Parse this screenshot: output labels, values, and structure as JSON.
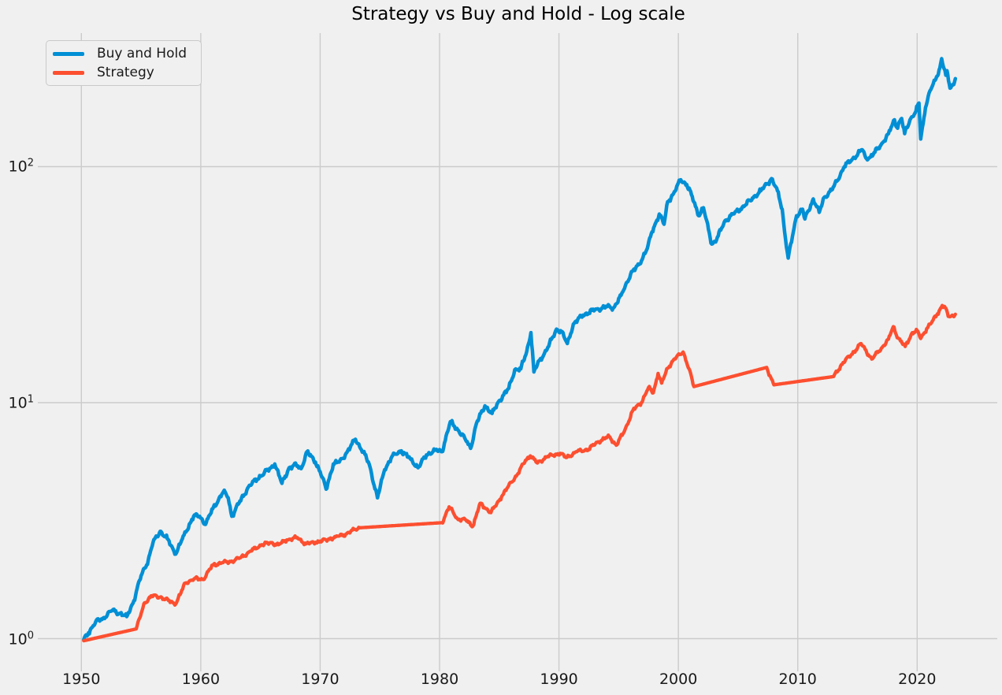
{
  "figure": {
    "title": "Strategy vs Buy and Hold - Log scale",
    "background_color": "#f0f0f0",
    "grid_color": "#cbcbcb",
    "text_color": "#1a1a1a"
  },
  "legend": {
    "items": [
      {
        "label": "Buy and Hold",
        "color": "#008fd5"
      },
      {
        "label": "Strategy",
        "color": "#fc4f30"
      }
    ]
  },
  "axes": {
    "x_ticks": [
      1950,
      1960,
      1970,
      1980,
      1990,
      2000,
      2010,
      2020
    ],
    "y_ticks": [
      {
        "base": "10",
        "exp": "0",
        "value": 1
      },
      {
        "base": "10",
        "exp": "1",
        "value": 10
      },
      {
        "base": "10",
        "exp": "2",
        "value": 100
      }
    ]
  },
  "chart_data": {
    "type": "line",
    "title": "Strategy vs Buy and Hold - Log scale",
    "xlabel": "",
    "ylabel": "",
    "x_unit": "year",
    "y_scale": "log",
    "x_range": [
      1946.4,
      2026.9
    ],
    "y_range": [
      0.75,
      370
    ],
    "grid": true,
    "legend_position": "upper left",
    "series": [
      {
        "name": "Buy and Hold",
        "color": "#008fd5",
        "points": [
          [
            1950.2,
            0.99
          ],
          [
            1950.6,
            1.06
          ],
          [
            1951.2,
            1.18
          ],
          [
            1951.8,
            1.22
          ],
          [
            1952.6,
            1.32
          ],
          [
            1953.2,
            1.28
          ],
          [
            1953.8,
            1.24
          ],
          [
            1954.4,
            1.45
          ],
          [
            1955.0,
            1.85
          ],
          [
            1955.6,
            2.15
          ],
          [
            1956.0,
            2.55
          ],
          [
            1956.6,
            2.85
          ],
          [
            1957.2,
            2.65
          ],
          [
            1957.9,
            2.28
          ],
          [
            1958.6,
            2.75
          ],
          [
            1959.4,
            3.3
          ],
          [
            1959.9,
            3.3
          ],
          [
            1960.4,
            3.05
          ],
          [
            1961.0,
            3.55
          ],
          [
            1961.9,
            4.2
          ],
          [
            1962.3,
            3.95
          ],
          [
            1962.6,
            3.3
          ],
          [
            1963.2,
            3.75
          ],
          [
            1964.0,
            4.4
          ],
          [
            1965.0,
            4.9
          ],
          [
            1965.9,
            5.3
          ],
          [
            1966.2,
            5.5
          ],
          [
            1966.8,
            4.55
          ],
          [
            1967.4,
            5.3
          ],
          [
            1968.0,
            5.45
          ],
          [
            1968.4,
            5.25
          ],
          [
            1968.9,
            6.2
          ],
          [
            1969.6,
            5.6
          ],
          [
            1970.0,
            5.1
          ],
          [
            1970.5,
            4.3
          ],
          [
            1971.1,
            5.5
          ],
          [
            1971.6,
            5.6
          ],
          [
            1972.1,
            6.0
          ],
          [
            1972.95,
            7.0
          ],
          [
            1973.6,
            6.2
          ],
          [
            1974.1,
            5.5
          ],
          [
            1974.8,
            3.95
          ],
          [
            1975.4,
            5.2
          ],
          [
            1976.0,
            5.9
          ],
          [
            1976.8,
            6.25
          ],
          [
            1977.6,
            5.75
          ],
          [
            1978.2,
            5.3
          ],
          [
            1978.9,
            6.0
          ],
          [
            1979.6,
            6.3
          ],
          [
            1980.2,
            6.2
          ],
          [
            1980.9,
            8.3
          ],
          [
            1981.6,
            7.6
          ],
          [
            1982.1,
            7.1
          ],
          [
            1982.6,
            6.4
          ],
          [
            1983.1,
            8.2
          ],
          [
            1983.8,
            9.7
          ],
          [
            1984.4,
            9.0
          ],
          [
            1985.0,
            10.2
          ],
          [
            1985.8,
            11.5
          ],
          [
            1986.3,
            13.8
          ],
          [
            1986.8,
            13.9
          ],
          [
            1987.3,
            16.5
          ],
          [
            1987.65,
            19.8
          ],
          [
            1987.9,
            13.5
          ],
          [
            1988.4,
            15.2
          ],
          [
            1989.0,
            16.8
          ],
          [
            1989.8,
            20.5
          ],
          [
            1990.2,
            20.0
          ],
          [
            1990.7,
            17.8
          ],
          [
            1991.2,
            21.5
          ],
          [
            1992.0,
            23.5
          ],
          [
            1993.0,
            24.7
          ],
          [
            1994.0,
            25.5
          ],
          [
            1994.6,
            25.3
          ],
          [
            1995.2,
            28.5
          ],
          [
            1996.0,
            35
          ],
          [
            1996.7,
            38.5
          ],
          [
            1997.4,
            45
          ],
          [
            1997.8,
            53
          ],
          [
            1998.4,
            63
          ],
          [
            1998.8,
            57
          ],
          [
            1999.1,
            71
          ],
          [
            1999.6,
            77
          ],
          [
            2000.2,
            88
          ],
          [
            2000.7,
            84
          ],
          [
            2001.1,
            76
          ],
          [
            2001.7,
            62
          ],
          [
            2002.1,
            67
          ],
          [
            2002.8,
            47
          ],
          [
            2003.2,
            49
          ],
          [
            2003.9,
            59
          ],
          [
            2004.6,
            63
          ],
          [
            2005.2,
            66
          ],
          [
            2006.0,
            72
          ],
          [
            2006.9,
            79
          ],
          [
            2007.8,
            89
          ],
          [
            2008.3,
            79
          ],
          [
            2008.7,
            66
          ],
          [
            2008.9,
            53
          ],
          [
            2009.2,
            41
          ],
          [
            2009.9,
            62
          ],
          [
            2010.4,
            66
          ],
          [
            2010.6,
            60
          ],
          [
            2011.3,
            73
          ],
          [
            2011.8,
            64
          ],
          [
            2012.2,
            74
          ],
          [
            2012.9,
            80
          ],
          [
            2013.9,
            100
          ],
          [
            2014.6,
            108
          ],
          [
            2015.4,
            118
          ],
          [
            2015.7,
            109
          ],
          [
            2016.1,
            110
          ],
          [
            2016.9,
            122
          ],
          [
            2017.6,
            138
          ],
          [
            2018.1,
            158
          ],
          [
            2018.3,
            147
          ],
          [
            2018.7,
            160
          ],
          [
            2018.95,
            138
          ],
          [
            2019.4,
            158
          ],
          [
            2019.9,
            172
          ],
          [
            2020.15,
            186
          ],
          [
            2020.3,
            131
          ],
          [
            2020.7,
            178
          ],
          [
            2021.0,
            205
          ],
          [
            2021.5,
            232
          ],
          [
            2021.9,
            262
          ],
          [
            2022.05,
            287
          ],
          [
            2022.4,
            244
          ],
          [
            2022.5,
            255
          ],
          [
            2022.75,
            215
          ],
          [
            2023.0,
            222
          ],
          [
            2023.2,
            236
          ]
        ]
      },
      {
        "name": "Strategy",
        "color": "#fc4f30",
        "points": [
          [
            1950.2,
            0.98
          ],
          [
            1954.6,
            1.1,
            1
          ],
          [
            1955.3,
            1.42
          ],
          [
            1955.9,
            1.52
          ],
          [
            1956.6,
            1.5
          ],
          [
            1957.3,
            1.45
          ],
          [
            1957.9,
            1.4
          ],
          [
            1958.7,
            1.72
          ],
          [
            1959.5,
            1.8
          ],
          [
            1960.2,
            1.78
          ],
          [
            1961.0,
            2.05
          ],
          [
            1961.8,
            2.1
          ],
          [
            1962.5,
            2.12
          ],
          [
            1963.3,
            2.2
          ],
          [
            1964.2,
            2.35
          ],
          [
            1965.1,
            2.5
          ],
          [
            1965.9,
            2.55
          ],
          [
            1966.5,
            2.5
          ],
          [
            1967.2,
            2.62
          ],
          [
            1968.1,
            2.68
          ],
          [
            1968.8,
            2.52
          ],
          [
            1969.6,
            2.56
          ],
          [
            1970.5,
            2.62
          ],
          [
            1971.3,
            2.7
          ],
          [
            1972.2,
            2.78
          ],
          [
            1972.9,
            2.9
          ],
          [
            1973.3,
            2.95
          ],
          [
            1980.2,
            3.1,
            1
          ],
          [
            1980.8,
            3.62
          ],
          [
            1981.5,
            3.22
          ],
          [
            1982.2,
            3.18
          ],
          [
            1982.8,
            3.0
          ],
          [
            1983.4,
            3.75
          ],
          [
            1984.3,
            3.42
          ],
          [
            1985.2,
            4.0
          ],
          [
            1986.0,
            4.6
          ],
          [
            1986.5,
            4.95
          ],
          [
            1987.2,
            5.7
          ],
          [
            1987.6,
            5.95
          ],
          [
            1988.2,
            5.55
          ],
          [
            1989.0,
            5.9
          ],
          [
            1990.1,
            6.1
          ],
          [
            1990.6,
            5.85
          ],
          [
            1991.5,
            6.2
          ],
          [
            1992.5,
            6.35
          ],
          [
            1993.2,
            6.8
          ],
          [
            1994.2,
            7.2
          ],
          [
            1994.8,
            6.6
          ],
          [
            1995.5,
            7.6
          ],
          [
            1996.2,
            9.3
          ],
          [
            1996.9,
            10.0
          ],
          [
            1997.5,
            11.6
          ],
          [
            1997.9,
            11.0
          ],
          [
            1998.3,
            13.3
          ],
          [
            1998.6,
            12.1
          ],
          [
            1999.1,
            14.0
          ],
          [
            1999.6,
            15.2
          ],
          [
            2000.1,
            16.0
          ],
          [
            2000.4,
            16.4
          ],
          [
            2000.9,
            13.9
          ],
          [
            2001.3,
            11.7
          ],
          [
            2007.4,
            14.1,
            1
          ],
          [
            2008.0,
            11.9
          ],
          [
            2013.0,
            12.9,
            1
          ],
          [
            2013.8,
            14.8
          ],
          [
            2014.5,
            16.0
          ],
          [
            2015.3,
            17.8
          ],
          [
            2016.2,
            15.3
          ],
          [
            2017.0,
            17.0
          ],
          [
            2017.6,
            18.6
          ],
          [
            2018.0,
            21.0
          ],
          [
            2018.4,
            18.8
          ],
          [
            2019.0,
            17.3
          ],
          [
            2019.6,
            19.8
          ],
          [
            2020.0,
            20.2
          ],
          [
            2020.3,
            18.7
          ],
          [
            2020.8,
            20.6
          ],
          [
            2021.2,
            21.8
          ],
          [
            2021.7,
            23.8
          ],
          [
            2022.1,
            25.8
          ],
          [
            2022.35,
            25.3
          ],
          [
            2022.6,
            23.2
          ],
          [
            2023.0,
            23.3
          ],
          [
            2023.2,
            23.7
          ]
        ]
      }
    ]
  }
}
